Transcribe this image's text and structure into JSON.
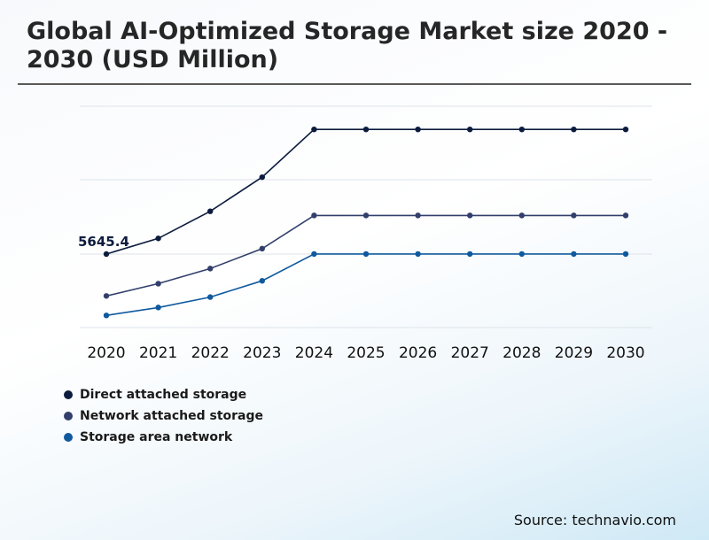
{
  "title": "Global AI-Optimized Storage Market size 2020 - 2030 (USD Million)",
  "source": "Source: technavio.com",
  "chart_data": {
    "type": "line",
    "x": [
      "2020",
      "2021",
      "2022",
      "2023",
      "2024",
      "2025",
      "2026",
      "2027",
      "2028",
      "2029",
      "2030"
    ],
    "ylim": [
      0,
      17000
    ],
    "grid": "horizontal",
    "legend_position": "bottom-left",
    "series": [
      {
        "name": "Direct attached storage",
        "color": "#0c1c3e",
        "values": [
          5645.4,
          6850,
          8930,
          11550,
          15220,
          15220,
          15220,
          15220,
          15220,
          15220,
          15220
        ]
      },
      {
        "name": "Network attached storage",
        "color": "#323f6b",
        "values": [
          2430,
          3370,
          4530,
          6060,
          8610,
          8610,
          8610,
          8610,
          8610,
          8610,
          8610
        ]
      },
      {
        "name": "Storage area network",
        "color": "#0f5a9e",
        "values": [
          930,
          1540,
          2340,
          3590,
          5650,
          5650,
          5650,
          5650,
          5650,
          5650,
          5650
        ]
      }
    ],
    "annotations": [
      {
        "series": 0,
        "index": 0,
        "text": "5645.4"
      }
    ]
  }
}
